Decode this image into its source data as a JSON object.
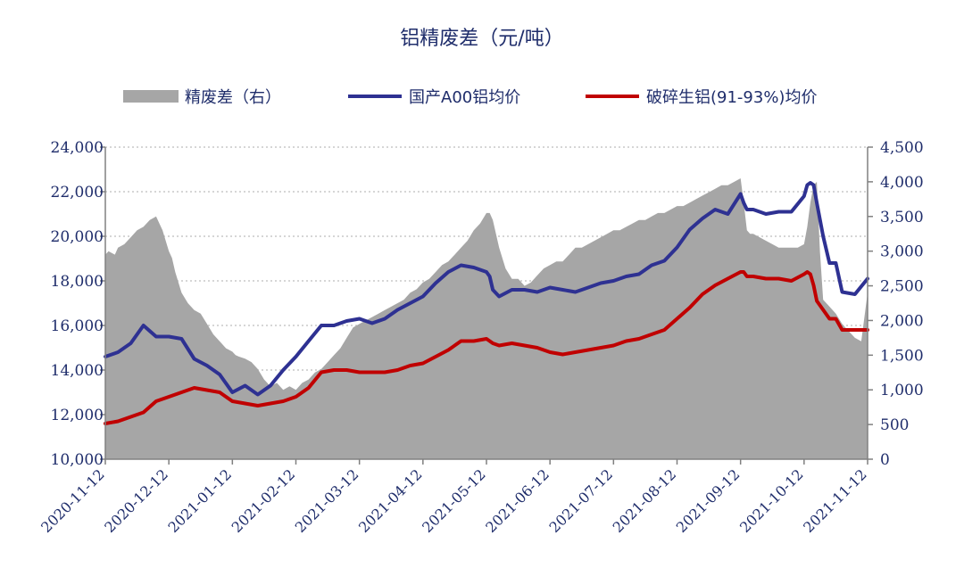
{
  "chart_data": {
    "type": "line",
    "title": "铝精废差（元/吨）",
    "legend": {
      "placement": "top",
      "items": [
        {
          "label": "精废差（右）",
          "color": "#a6a6a6",
          "kind": "area"
        },
        {
          "label": "国产A00铝均价",
          "color": "#2e3192",
          "kind": "line"
        },
        {
          "label": "破碎生铝(91-93%)均价",
          "color": "#c00000",
          "kind": "line"
        }
      ]
    },
    "left_axis": {
      "min": 10000,
      "max": 24000,
      "ticks": [
        10000,
        12000,
        14000,
        16000,
        18000,
        20000,
        22000,
        24000
      ],
      "tick_labels": [
        "10,000",
        "12,000",
        "14,000",
        "16,000",
        "18,000",
        "20,000",
        "22,000",
        "24,000"
      ]
    },
    "right_axis": {
      "min": 0,
      "max": 4500,
      "ticks": [
        0,
        500,
        1000,
        1500,
        2000,
        2500,
        3000,
        3500,
        4000,
        4500
      ],
      "tick_labels": [
        "0",
        "500",
        "1,000",
        "1,500",
        "2,000",
        "2,500",
        "3,000",
        "3,500",
        "4,000",
        "4,500"
      ]
    },
    "x_axis": {
      "categories": [
        "2020-11-12",
        "2020-12-12",
        "2021-01-12",
        "2021-02-12",
        "2021-03-12",
        "2021-04-12",
        "2021-05-12",
        "2021-06-12",
        "2021-07-12",
        "2021-08-12",
        "2021-09-12",
        "2021-10-12",
        "2021-11-12"
      ]
    },
    "grid": "horizontal-dotted",
    "series": [
      {
        "name": "精废差（右）",
        "axis": "right",
        "type": "area",
        "color": "#a6a6a6",
        "x": [
          0,
          0.05,
          0.15,
          0.2,
          0.3,
          0.4,
          0.5,
          0.6,
          0.7,
          0.8,
          0.9,
          1,
          1.05,
          1.1,
          1.2,
          1.3,
          1.4,
          1.5,
          1.6,
          1.7,
          1.8,
          1.9,
          2,
          2.05,
          2.1,
          2.2,
          2.3,
          2.4,
          2.5,
          2.6,
          2.7,
          2.8,
          2.9,
          3,
          3.1,
          3.2,
          3.3,
          3.4,
          3.5,
          3.6,
          3.7,
          3.8,
          3.9,
          4,
          4.1,
          4.2,
          4.3,
          4.4,
          4.5,
          4.6,
          4.7,
          4.8,
          4.9,
          5,
          5.1,
          5.2,
          5.3,
          5.4,
          5.5,
          5.6,
          5.7,
          5.8,
          5.9,
          6,
          6.05,
          6.1,
          6.2,
          6.3,
          6.4,
          6.5,
          6.6,
          6.7,
          6.8,
          6.9,
          7,
          7.1,
          7.2,
          7.3,
          7.4,
          7.5,
          7.6,
          7.7,
          7.8,
          7.9,
          8,
          8.1,
          8.2,
          8.3,
          8.4,
          8.5,
          8.6,
          8.7,
          8.8,
          8.9,
          9,
          9.1,
          9.2,
          9.3,
          9.4,
          9.5,
          9.6,
          9.7,
          9.8,
          9.9,
          10,
          10.05,
          10.1,
          10.15,
          10.2,
          10.3,
          10.4,
          10.5,
          10.6,
          10.7,
          10.8,
          10.9,
          11,
          11.05,
          11.1,
          11.15,
          11.2,
          11.25,
          11.3,
          11.4,
          11.5,
          11.6,
          11.7,
          11.8,
          11.9,
          12
        ],
        "values": [
          2950,
          3000,
          2950,
          3050,
          3100,
          3200,
          3300,
          3350,
          3450,
          3500,
          3300,
          3000,
          2900,
          2700,
          2400,
          2250,
          2150,
          2100,
          1950,
          1800,
          1700,
          1600,
          1550,
          1500,
          1480,
          1450,
          1400,
          1300,
          1150,
          1050,
          1100,
          1000,
          1050,
          1000,
          1100,
          1150,
          1250,
          1300,
          1400,
          1500,
          1600,
          1750,
          1900,
          1950,
          2000,
          2050,
          2100,
          2150,
          2200,
          2250,
          2300,
          2400,
          2450,
          2550,
          2600,
          2700,
          2800,
          2850,
          2950,
          3050,
          3150,
          3300,
          3400,
          3550,
          3550,
          3450,
          3050,
          2750,
          2600,
          2600,
          2500,
          2550,
          2650,
          2750,
          2800,
          2850,
          2850,
          2950,
          3050,
          3050,
          3100,
          3150,
          3200,
          3250,
          3300,
          3300,
          3350,
          3400,
          3450,
          3450,
          3500,
          3550,
          3550,
          3600,
          3650,
          3650,
          3700,
          3750,
          3800,
          3850,
          3900,
          3950,
          3950,
          4000,
          4050,
          3700,
          3300,
          3250,
          3250,
          3200,
          3150,
          3100,
          3050,
          3050,
          3050,
          3050,
          3100,
          3350,
          3700,
          3950,
          4000,
          3000,
          2300,
          2200,
          2100,
          1950,
          1850,
          1750,
          1700,
          2400
        ],
        "note": "values estimated from right-axis gridlines"
      },
      {
        "name": "国产A00铝均价",
        "axis": "left",
        "type": "line",
        "color": "#2e3192",
        "x": [
          0,
          0.2,
          0.4,
          0.6,
          0.8,
          1,
          1.2,
          1.4,
          1.6,
          1.8,
          2,
          2.2,
          2.4,
          2.6,
          2.8,
          3,
          3.2,
          3.4,
          3.6,
          3.8,
          4,
          4.2,
          4.4,
          4.6,
          4.8,
          5,
          5.2,
          5.4,
          5.6,
          5.8,
          6,
          6.05,
          6.1,
          6.2,
          6.4,
          6.6,
          6.8,
          7,
          7.2,
          7.4,
          7.6,
          7.8,
          8,
          8.2,
          8.4,
          8.6,
          8.8,
          9,
          9.2,
          9.4,
          9.6,
          9.8,
          10,
          10.05,
          10.1,
          10.2,
          10.4,
          10.6,
          10.8,
          11,
          11.05,
          11.1,
          11.15,
          11.2,
          11.3,
          11.4,
          11.5,
          11.6,
          11.8,
          12
        ],
        "values": [
          14600,
          14800,
          15200,
          16000,
          15500,
          15500,
          15400,
          14500,
          14200,
          13800,
          13000,
          13300,
          12900,
          13300,
          14000,
          14600,
          15300,
          16000,
          16000,
          16200,
          16300,
          16100,
          16300,
          16700,
          17000,
          17300,
          17900,
          18400,
          18700,
          18600,
          18400,
          18200,
          17600,
          17300,
          17600,
          17600,
          17500,
          17700,
          17600,
          17500,
          17700,
          17900,
          18000,
          18200,
          18300,
          18700,
          18900,
          19500,
          20300,
          20800,
          21200,
          21000,
          21900,
          21500,
          21200,
          21200,
          21000,
          21100,
          21100,
          21800,
          22300,
          22400,
          22300,
          21500,
          20000,
          18800,
          18800,
          17500,
          17400,
          18100
        ],
        "note": "values estimated from left-axis gridlines"
      },
      {
        "name": "破碎生铝(91-93%)均价",
        "axis": "left",
        "type": "line",
        "color": "#c00000",
        "x": [
          0,
          0.2,
          0.4,
          0.6,
          0.8,
          1,
          1.2,
          1.4,
          1.6,
          1.8,
          2,
          2.2,
          2.4,
          2.6,
          2.8,
          3,
          3.2,
          3.4,
          3.6,
          3.8,
          4,
          4.2,
          4.4,
          4.6,
          4.8,
          5,
          5.2,
          5.4,
          5.6,
          5.8,
          6,
          6.05,
          6.1,
          6.2,
          6.4,
          6.6,
          6.8,
          7,
          7.2,
          7.4,
          7.6,
          7.8,
          8,
          8.2,
          8.4,
          8.6,
          8.8,
          9,
          9.2,
          9.4,
          9.6,
          9.8,
          10,
          10.05,
          10.1,
          10.2,
          10.4,
          10.6,
          10.8,
          11,
          11.05,
          11.1,
          11.15,
          11.2,
          11.3,
          11.4,
          11.5,
          11.6,
          11.8,
          12
        ],
        "values": [
          11600,
          11700,
          11900,
          12100,
          12600,
          12800,
          13000,
          13200,
          13100,
          13000,
          12600,
          12500,
          12400,
          12500,
          12600,
          12800,
          13200,
          13900,
          14000,
          14000,
          13900,
          13900,
          13900,
          14000,
          14200,
          14300,
          14600,
          14900,
          15300,
          15300,
          15400,
          15300,
          15200,
          15100,
          15200,
          15100,
          15000,
          14800,
          14700,
          14800,
          14900,
          15000,
          15100,
          15300,
          15400,
          15600,
          15800,
          16300,
          16800,
          17400,
          17800,
          18100,
          18400,
          18400,
          18200,
          18200,
          18100,
          18100,
          18000,
          18300,
          18400,
          18300,
          17800,
          17100,
          16700,
          16300,
          16300,
          15800,
          15800,
          15800
        ],
        "note": "values estimated from left-axis gridlines"
      }
    ]
  },
  "colors": {
    "text": "#1f2d6b",
    "axis": "#808080",
    "grid": "#c8c8c8"
  }
}
